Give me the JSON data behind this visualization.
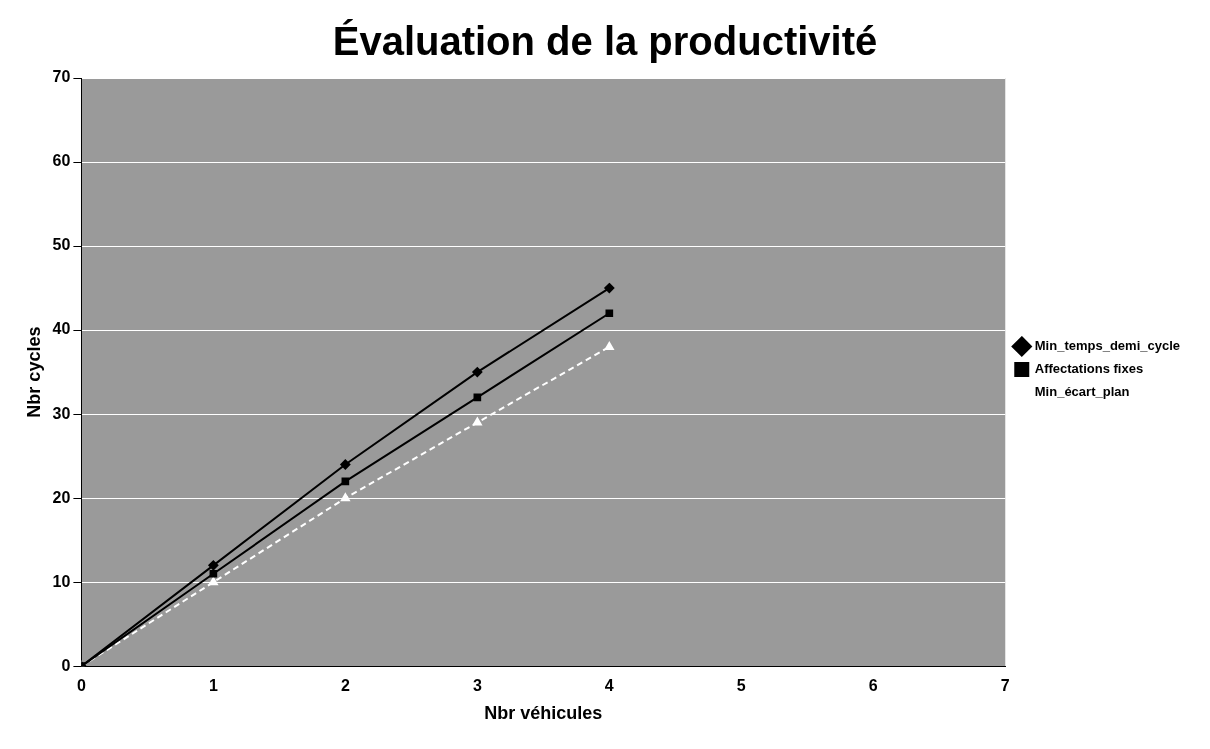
{
  "chart_data": {
    "type": "line",
    "title": "Évaluation de la productivité",
    "xlabel": "Nbr véhicules",
    "ylabel": "Nbr cycles",
    "x": [
      0,
      1,
      2,
      3,
      4
    ],
    "series": [
      {
        "name": "Min_temps_demi_cycle",
        "color": "#000000",
        "marker": "diamond",
        "values": [
          0,
          12,
          24,
          35,
          45
        ]
      },
      {
        "name": "Affectations fixes",
        "color": "#000000",
        "marker": "square",
        "values": [
          0,
          11,
          22,
          32,
          42
        ]
      },
      {
        "name": "Min_écart_plan",
        "color": "#ffffff",
        "marker": "triangle",
        "line_style": "dashed",
        "values": [
          0,
          10,
          20,
          29,
          38
        ]
      }
    ],
    "xlim": [
      0,
      7
    ],
    "xticks": [
      0,
      1,
      2,
      3,
      4,
      5,
      6,
      7
    ],
    "ylim": [
      0,
      70
    ],
    "yticks": [
      0,
      10,
      20,
      30,
      40,
      50,
      60,
      70
    ],
    "grid": "y",
    "legend": "right"
  }
}
